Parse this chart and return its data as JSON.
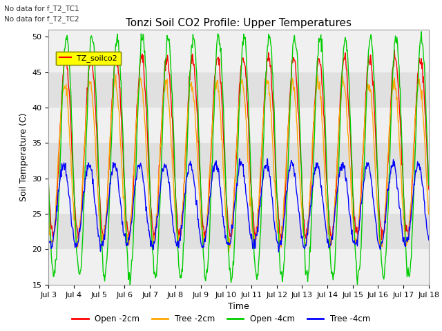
{
  "title": "Tonzi Soil CO2 Profile: Upper Temperatures",
  "ylabel": "Soil Temperature (C)",
  "xlabel": "Time",
  "annotation_lines": [
    "No data for f_T2_TC1",
    "No data for f_T2_TC2"
  ],
  "legend_label": "TZ_soilco2",
  "ylim": [
    15,
    51
  ],
  "yticks": [
    15,
    20,
    25,
    30,
    35,
    40,
    45,
    50
  ],
  "xtick_labels": [
    "Jul 3",
    "Jul 4",
    "Jul 5",
    "Jul 6",
    "Jul 7",
    "Jul 8",
    "Jul 9",
    "Jul 10",
    "Jul 11",
    "Jul 12",
    "Jul 13",
    "Jul 14",
    "Jul 15",
    "Jul 16",
    "Jul 17",
    "Jul 18"
  ],
  "series": [
    {
      "label": "Open -2cm",
      "color": "#ff0000"
    },
    {
      "label": "Tree -2cm",
      "color": "#ffa500"
    },
    {
      "label": "Open -4cm",
      "color": "#00cc00"
    },
    {
      "label": "Tree -4cm",
      "color": "#0000ff"
    }
  ],
  "bg_color": "#f0f0f0",
  "plot_bg_color": "#ffffff",
  "title_fontsize": 11,
  "axis_fontsize": 9,
  "tick_fontsize": 8,
  "legend_box_color": "#ffff00",
  "legend_box_edge": "#888800",
  "gray_band_color": "#e0e0e0",
  "gray_band_ranges": [
    [
      20,
      25
    ],
    [
      30,
      35
    ],
    [
      40,
      45
    ]
  ]
}
